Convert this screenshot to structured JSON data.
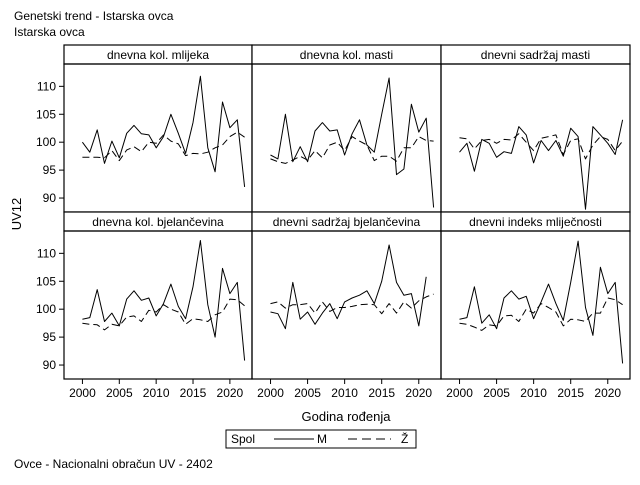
{
  "header": {
    "title": "Genetski trend - Istarska ovca",
    "subtitle": "Istarska ovca"
  },
  "footer": {
    "text": "Ovce - Nacionalni obračun UV - 2402"
  },
  "legend": {
    "title": "Spol",
    "items": [
      {
        "label": "M",
        "dash": "solid"
      },
      {
        "label": "Ž",
        "dash": "dashed"
      }
    ]
  },
  "colors": {
    "line": "#000000",
    "frame": "#000000",
    "background": "#ffffff"
  },
  "chart_data": {
    "type": "line",
    "layout": "panel-grid 2x3",
    "xlabel": "Godina rođenja",
    "ylabel": "UV12",
    "ylim": [
      87.5,
      114
    ],
    "xlim": [
      1997.5,
      2023
    ],
    "x_ticks": [
      2000,
      2005,
      2010,
      2015,
      2020
    ],
    "y_ticks": [
      90,
      95,
      100,
      105,
      110
    ],
    "x": [
      2000,
      2001,
      2002,
      2003,
      2004,
      2005,
      2006,
      2007,
      2008,
      2009,
      2010,
      2011,
      2012,
      2013,
      2014,
      2015,
      2016,
      2017,
      2018,
      2019,
      2020,
      2021,
      2022
    ],
    "panels": [
      {
        "title": "dnevna kol. mlijeka",
        "series": [
          {
            "name": "M",
            "values": [
              100,
              98.2,
              102.2,
              96.2,
              100.2,
              97.2,
              101.6,
              103,
              101.5,
              101.3,
              99,
              101,
              105,
              101.6,
              98,
              103.5,
              111.8,
              99,
              94.7,
              107.2,
              102.6,
              104,
              92
            ]
          },
          {
            "name": "Ž",
            "values": [
              97.3,
              97.3,
              97.3,
              97.2,
              98.5,
              96.7,
              98.6,
              99.2,
              98.3,
              100,
              99.8,
              101.3,
              100.2,
              99.7,
              97.6,
              98,
              97.9,
              98.2,
              99,
              99.5,
              101,
              101.8,
              100.9
            ]
          }
        ]
      },
      {
        "title": "dnevna kol. masti",
        "series": [
          {
            "name": "M",
            "values": [
              97.7,
              97,
              105,
              96.5,
              99.2,
              96.5,
              102,
              103.5,
              102,
              102.2,
              97.7,
              101.5,
              104,
              99.5,
              98.2,
              105,
              111.5,
              94.2,
              95.2,
              106.8,
              101.8,
              104.3,
              88.3
            ]
          },
          {
            "name": "Ž",
            "values": [
              97,
              96.5,
              96.2,
              96.8,
              97.5,
              96.8,
              98.5,
              97.2,
              99.5,
              100,
              98.5,
              101,
              100.2,
              99.5,
              96.7,
              97.5,
              97.5,
              96.6,
              99,
              99,
              101,
              100.3,
              100.2
            ]
          }
        ]
      },
      {
        "title": "dnevni sadržaj masti",
        "series": [
          {
            "name": "M",
            "values": [
              98.2,
              99.8,
              94.8,
              100.5,
              99.8,
              97.3,
              98.3,
              98,
              102.8,
              101.3,
              96.3,
              100.3,
              98.5,
              100.3,
              97.5,
              102.5,
              101,
              88,
              102.8,
              101.3,
              99.8,
              97.8,
              104
            ]
          },
          {
            "name": "Ž",
            "values": [
              100.8,
              100.6,
              98.8,
              100.3,
              100.5,
              99.8,
              100.5,
              100.4,
              101.5,
              100,
              98.5,
              100.7,
              101,
              101.3,
              97.8,
              100.3,
              100.6,
              97,
              99.5,
              101,
              100.5,
              98.5,
              100.2
            ]
          }
        ]
      },
      {
        "title": "dnevna kol. bjelančevina",
        "series": [
          {
            "name": "M",
            "values": [
              98.2,
              98.5,
              103.5,
              97.8,
              99.3,
              97,
              101.8,
              103.3,
              101.6,
              102,
              98.8,
              101,
              104.5,
              100.5,
              98.3,
              104,
              112.3,
              100.8,
              95,
              107.3,
              102.8,
              104.8,
              90.8
            ]
          },
          {
            "name": "Ž",
            "values": [
              97.5,
              97.3,
              97.2,
              96.3,
              97.3,
              97,
              98.6,
              98.8,
              97.8,
              99.8,
              99.5,
              100.8,
              100,
              99.5,
              97.3,
              98.3,
              98.1,
              97.8,
              99,
              99.5,
              101.8,
              101.7,
              100.6
            ]
          }
        ]
      },
      {
        "title": "dnevni sadržaj bjelančevina",
        "series": [
          {
            "name": "M",
            "values": [
              99.5,
              99.2,
              96.5,
              104.8,
              98.2,
              99.5,
              97.3,
              99.3,
              101,
              98.3,
              101.3,
              102,
              102.5,
              103.3,
              101,
              105,
              111.5,
              104.8,
              102.5,
              102.8,
              97,
              105.8,
              null
            ]
          },
          {
            "name": "Ž",
            "values": [
              101,
              101.3,
              100.2,
              100.8,
              100.8,
              101,
              99.3,
              101.3,
              99.6,
              100.3,
              100.3,
              100.5,
              100.8,
              100.9,
              100.8,
              99.2,
              101,
              99.3,
              101.3,
              100.2,
              101.5,
              102.2,
              102.7
            ]
          }
        ]
      },
      {
        "title": "dnevni indeks mliječnosti",
        "series": [
          {
            "name": "M",
            "values": [
              98.2,
              98.5,
              104,
              97.5,
              99,
              96.5,
              102,
              103.3,
              101.8,
              102.3,
              98.3,
              101.3,
              104.5,
              101,
              98,
              104.8,
              112.2,
              100.3,
              95.3,
              107.5,
              102.8,
              104.8,
              90.3
            ]
          },
          {
            "name": "Ž",
            "values": [
              97.5,
              97.3,
              96.8,
              96.2,
              97.2,
              97,
              98.8,
              98.9,
              97.8,
              100,
              99.3,
              101,
              100.3,
              99.5,
              97,
              98.2,
              98.1,
              97.8,
              99.3,
              99.3,
              102,
              101.7,
              100.8
            ]
          }
        ]
      }
    ]
  }
}
